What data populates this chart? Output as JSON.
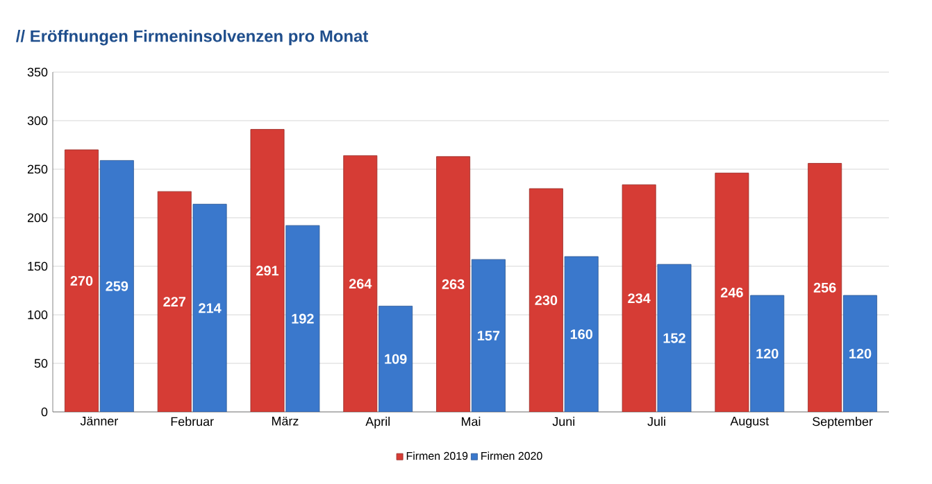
{
  "chart_data": {
    "type": "bar",
    "title": "// Eröffnungen Firmeninsolvenzen pro Monat",
    "categories": [
      "Jänner",
      "Februar",
      "März",
      "April",
      "Mai",
      "Juni",
      "Juli",
      "August",
      "September"
    ],
    "series": [
      {
        "name": "Firmen 2019",
        "color": "#d63c35",
        "values": [
          270,
          227,
          291,
          264,
          263,
          230,
          234,
          246,
          256
        ]
      },
      {
        "name": "Firmen 2020",
        "color": "#3a78cc",
        "values": [
          259,
          214,
          192,
          109,
          157,
          160,
          152,
          120,
          120
        ]
      }
    ],
    "ylim": [
      0,
      350
    ],
    "yticks": [
      0,
      50,
      100,
      150,
      200,
      250,
      300,
      350
    ],
    "grid": "y",
    "legend": "bottom",
    "data_labels": true
  }
}
